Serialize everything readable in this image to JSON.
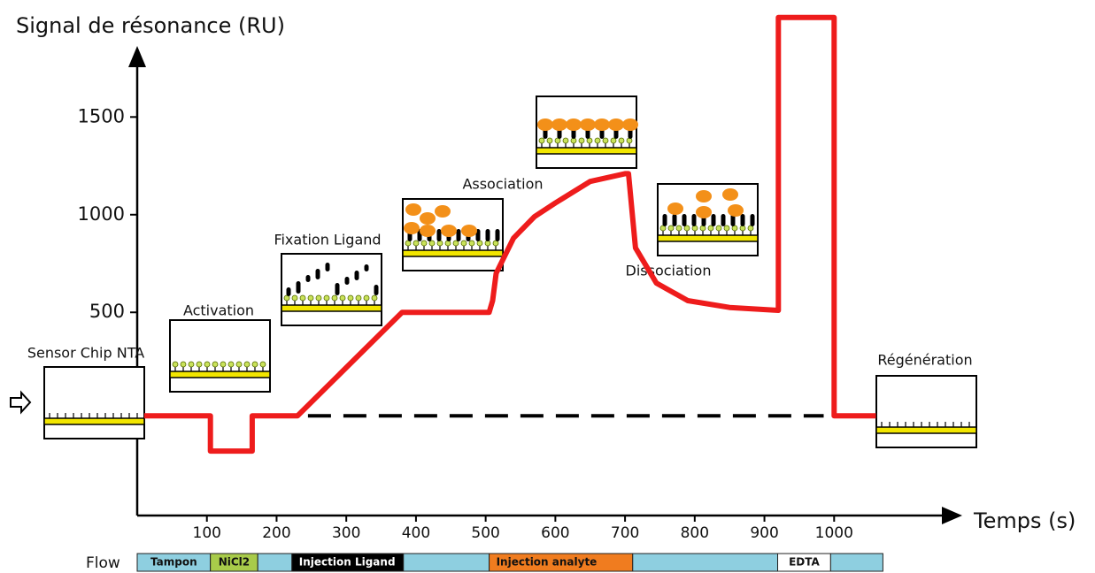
{
  "chart_data": {
    "type": "line",
    "y_label": "Signal de résonance (RU)",
    "x_label": "Temps (s)",
    "xlim": [
      0,
      1180
    ],
    "ylim": [
      -540,
      1850
    ],
    "xticks": [
      100,
      200,
      300,
      400,
      500,
      600,
      700,
      800,
      900,
      1000
    ],
    "yticks": [
      500,
      1000,
      1500
    ],
    "series": [
      {
        "color": "#ee1c1c",
        "x": [
          10,
          105,
          105,
          165,
          165,
          230,
          380,
          505,
          510,
          515,
          540,
          570,
          600,
          650,
          700,
          705,
          715,
          745,
          790,
          850,
          920,
          920,
          1000,
          1000,
          1060
        ],
        "values": [
          -30,
          -30,
          -210,
          -210,
          -30,
          -30,
          500,
          500,
          560,
          700,
          880,
          990,
          1060,
          1170,
          1210,
          1210,
          830,
          650,
          560,
          525,
          510,
          2010,
          2010,
          -30,
          -30
        ]
      },
      {
        "color": "#000000",
        "dashed": true,
        "x": [
          245,
          985
        ],
        "values": [
          -30,
          -30
        ]
      }
    ],
    "annotations": [
      "Sensor Chip NTA",
      "Activation",
      "Fixation Ligand",
      "Association",
      "Dissociation",
      "Régénération"
    ],
    "flow": {
      "label": "Flow",
      "segments": [
        {
          "name": "Tampon",
          "start": 0,
          "end": 105,
          "color": "#8ecfe0"
        },
        {
          "name": "NiCl2",
          "start": 105,
          "end": 173,
          "color": "#a8cb4a"
        },
        {
          "name": null,
          "start": 173,
          "end": 222,
          "color": "#8ecfe0"
        },
        {
          "name": "Injection Ligand",
          "start": 222,
          "end": 382,
          "color": "#000000"
        },
        {
          "name": null,
          "start": 382,
          "end": 505,
          "color": "#8ecfe0"
        },
        {
          "name": "Injection analyte",
          "start": 505,
          "end": 711,
          "color": "#f07c1f"
        },
        {
          "name": null,
          "start": 711,
          "end": 919,
          "color": "#8ecfe0"
        },
        {
          "name": "EDTA",
          "start": 919,
          "end": 995,
          "color": "#ffffff"
        },
        {
          "name": null,
          "start": 995,
          "end": 1070,
          "color": "#8ecfe0"
        }
      ]
    }
  }
}
